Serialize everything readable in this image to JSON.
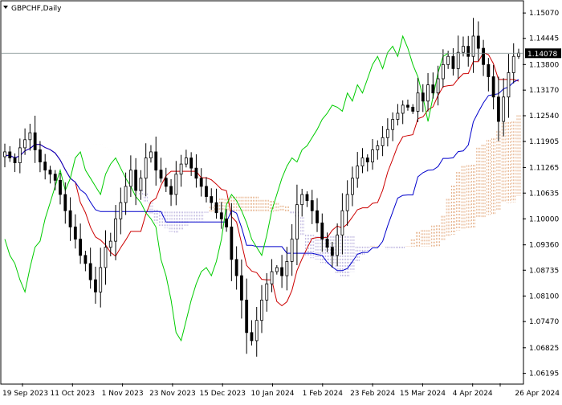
{
  "chart_data": {
    "type": "candlestick",
    "title": "GBPCHF,Daily",
    "current_price": 1.14078,
    "current_price_label": "1.14078",
    "ylim": [
      1.0595,
      1.1535
    ],
    "y_ticks": [
      "1.15070",
      "1.14445",
      "1.13800",
      "1.13170",
      "1.12540",
      "1.11905",
      "1.11265",
      "1.10635",
      "1.10000",
      "1.09360",
      "1.08735",
      "1.08100",
      "1.07470",
      "1.06825",
      "1.06195"
    ],
    "x_ticks": [
      "19 Sep 2023",
      "11 Oct 2023",
      "1 Nov 2023",
      "23 Nov 2023",
      "15 Dec 2023",
      "10 Jan 2024",
      "1 Feb 2024",
      "23 Feb 2024",
      "15 Mar 2024",
      "4 Apr 2024",
      "26 Apr 2024"
    ],
    "grid": false,
    "indicator": "Ichimoku Kinko Hyo",
    "colors": {
      "candle": "#000000",
      "tenkan_sen": "#cc0000",
      "kijun_sen": "#0000cc",
      "chikou_span": "#00cc00",
      "cloud_bullish": "#e0a070",
      "cloud_bearish": "#b0a6d8",
      "price_line": "#7a8a8a",
      "price_label_bg": "#000000",
      "price_label_text": "#ffffff"
    },
    "close": [
      1.1165,
      1.115,
      1.1138,
      1.1175,
      1.1195,
      1.1212,
      1.117,
      1.114,
      1.112,
      1.111,
      1.1095,
      1.106,
      1.102,
      1.098,
      1.095,
      1.091,
      1.089,
      1.085,
      1.082,
      1.088,
      1.093,
      1.0945,
      1.1,
      1.104,
      1.108,
      1.112,
      1.107,
      1.11,
      1.115,
      1.1165,
      1.112,
      1.11,
      1.108,
      1.106,
      1.111,
      1.1135,
      1.115,
      1.1125,
      1.11,
      1.108,
      1.1055,
      1.104,
      1.1015,
      1.1,
      1.098,
      1.09,
      1.086,
      1.08,
      1.072,
      1.07,
      1.075,
      1.08,
      1.084,
      1.087,
      1.088,
      1.086,
      1.0895,
      1.095,
      1.1035,
      1.106,
      1.1045,
      1.102,
      1.099,
      1.095,
      1.093,
      1.091,
      1.096,
      1.102,
      1.106,
      1.11,
      1.113,
      1.115,
      1.114,
      1.117,
      1.118,
      1.12,
      1.122,
      1.1245,
      1.126,
      1.128,
      1.1275,
      1.1265,
      1.131,
      1.129,
      1.133,
      1.131,
      1.1345,
      1.138,
      1.14,
      1.137,
      1.141,
      1.1425,
      1.14,
      1.145,
      1.142,
      1.138,
      1.135,
      1.13,
      1.124,
      1.13,
      1.136,
      1.14,
      1.1408
    ]
  }
}
